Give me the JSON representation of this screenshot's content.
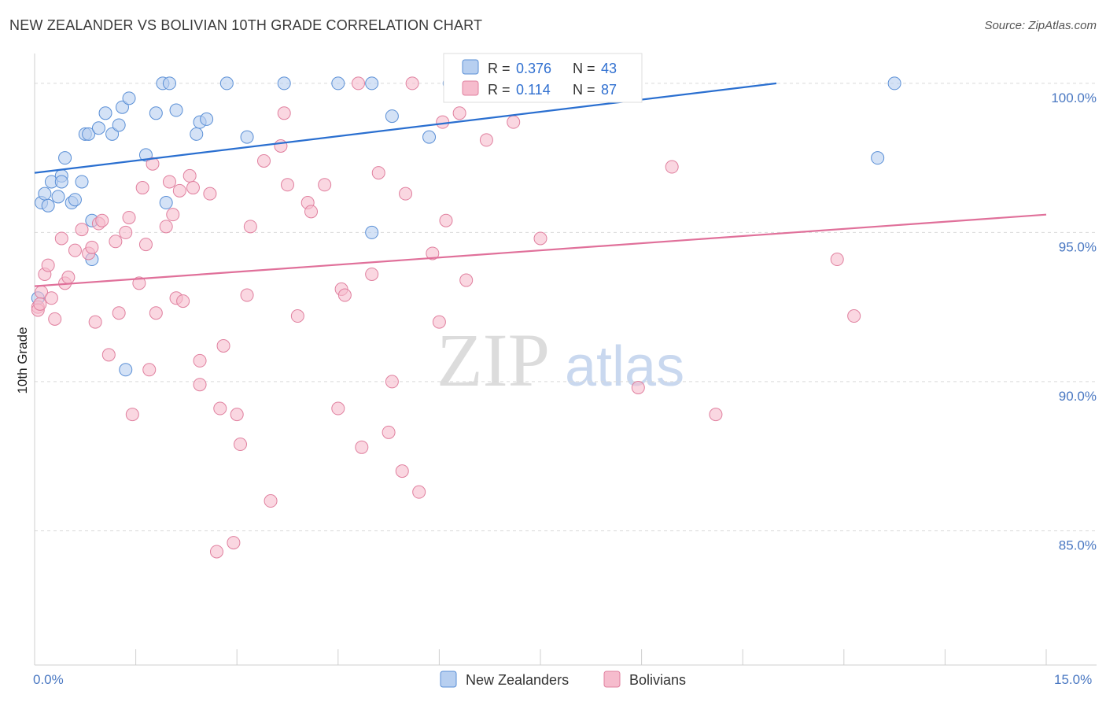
{
  "title": "NEW ZEALANDER VS BOLIVIAN 10TH GRADE CORRELATION CHART",
  "source": "Source: ZipAtlas.com",
  "watermark": {
    "zip": "ZIP",
    "atlas": "atlas"
  },
  "chart_data": {
    "type": "scatter",
    "ylabel": "10th Grade",
    "xlim": [
      0,
      15
    ],
    "ylim": [
      80.5,
      101.0
    ],
    "x_tick_labels": {
      "left": "0.0%",
      "right": "15.0%"
    },
    "y_ticks": [
      {
        "value": 85,
        "label": "85.0%"
      },
      {
        "value": 90,
        "label": "90.0%"
      },
      {
        "value": 95,
        "label": "95.0%"
      },
      {
        "value": 100,
        "label": "100.0%"
      }
    ],
    "legend": {
      "nz": {
        "r_label": "R =",
        "r_value": "0.376",
        "n_label": "N =",
        "n_value": "43"
      },
      "bo": {
        "r_label": "R =",
        "r_value": "0.114",
        "n_label": "N =",
        "n_value": "87"
      }
    },
    "series": [
      {
        "name": "New Zealanders",
        "key": "nz",
        "color": "#5a8fd6",
        "fill": "#b7cff0",
        "trend": {
          "x0": 0.0,
          "y0": 97.0,
          "x1": 11.0,
          "y1": 100.0,
          "color": "#2a6fd0"
        },
        "points": [
          [
            0.1,
            96.0
          ],
          [
            0.15,
            96.3
          ],
          [
            0.2,
            95.9
          ],
          [
            0.25,
            96.7
          ],
          [
            0.35,
            96.2
          ],
          [
            0.4,
            96.9
          ],
          [
            0.45,
            97.5
          ],
          [
            0.55,
            96.0
          ],
          [
            0.6,
            96.1
          ],
          [
            0.75,
            98.3
          ],
          [
            0.8,
            98.3
          ],
          [
            0.95,
            98.5
          ],
          [
            1.05,
            99.0
          ],
          [
            1.15,
            98.3
          ],
          [
            1.25,
            98.6
          ],
          [
            1.3,
            99.2
          ],
          [
            1.4,
            99.5
          ],
          [
            1.65,
            97.6
          ],
          [
            1.8,
            99.0
          ],
          [
            1.9,
            100.0
          ],
          [
            2.0,
            100.0
          ],
          [
            2.1,
            99.1
          ],
          [
            2.4,
            98.3
          ],
          [
            2.45,
            98.7
          ],
          [
            2.55,
            98.8
          ],
          [
            2.85,
            100.0
          ],
          [
            3.15,
            98.2
          ],
          [
            3.7,
            100.0
          ],
          [
            4.5,
            100.0
          ],
          [
            5.0,
            100.0
          ],
          [
            5.3,
            98.9
          ],
          [
            5.85,
            98.2
          ],
          [
            6.15,
            100.0
          ],
          [
            12.5,
            97.5
          ],
          [
            12.75,
            100.0
          ],
          [
            0.05,
            92.8
          ],
          [
            0.85,
            95.4
          ],
          [
            0.85,
            94.1
          ],
          [
            1.35,
            90.4
          ],
          [
            1.95,
            96.0
          ],
          [
            5.0,
            95.0
          ],
          [
            0.7,
            96.7
          ],
          [
            0.4,
            96.7
          ]
        ]
      },
      {
        "name": "Bolivians",
        "key": "bo",
        "color": "#e0809f",
        "fill": "#f6bccd",
        "trend": {
          "x0": 0.0,
          "y0": 93.2,
          "x1": 15.0,
          "y1": 95.6,
          "color": "#e0709a"
        },
        "points": [
          [
            0.05,
            92.5
          ],
          [
            0.1,
            93.0
          ],
          [
            0.15,
            93.6
          ],
          [
            0.2,
            93.9
          ],
          [
            0.25,
            92.8
          ],
          [
            0.3,
            92.1
          ],
          [
            0.4,
            94.8
          ],
          [
            0.45,
            93.3
          ],
          [
            0.5,
            93.5
          ],
          [
            0.6,
            94.4
          ],
          [
            0.7,
            95.1
          ],
          [
            0.8,
            94.3
          ],
          [
            0.85,
            94.5
          ],
          [
            0.9,
            92.0
          ],
          [
            0.95,
            95.3
          ],
          [
            1.0,
            95.4
          ],
          [
            1.1,
            90.9
          ],
          [
            1.2,
            94.7
          ],
          [
            1.25,
            92.3
          ],
          [
            1.35,
            95.0
          ],
          [
            1.4,
            95.5
          ],
          [
            1.45,
            88.9
          ],
          [
            1.55,
            93.3
          ],
          [
            1.6,
            96.5
          ],
          [
            1.65,
            94.6
          ],
          [
            1.7,
            90.4
          ],
          [
            1.75,
            97.3
          ],
          [
            1.8,
            92.3
          ],
          [
            1.95,
            95.2
          ],
          [
            2.0,
            96.7
          ],
          [
            2.05,
            95.6
          ],
          [
            2.1,
            92.8
          ],
          [
            2.15,
            96.4
          ],
          [
            2.2,
            92.7
          ],
          [
            2.3,
            96.9
          ],
          [
            2.35,
            96.5
          ],
          [
            2.45,
            89.9
          ],
          [
            2.45,
            90.7
          ],
          [
            2.6,
            96.3
          ],
          [
            2.7,
            84.3
          ],
          [
            2.75,
            89.1
          ],
          [
            2.8,
            91.2
          ],
          [
            2.95,
            84.6
          ],
          [
            3.0,
            88.9
          ],
          [
            3.05,
            87.9
          ],
          [
            3.15,
            92.9
          ],
          [
            3.2,
            95.2
          ],
          [
            3.4,
            97.4
          ],
          [
            3.5,
            86.0
          ],
          [
            3.65,
            97.9
          ],
          [
            3.7,
            99.0
          ],
          [
            3.75,
            96.6
          ],
          [
            3.9,
            92.2
          ],
          [
            4.05,
            96.0
          ],
          [
            4.1,
            95.7
          ],
          [
            4.3,
            96.6
          ],
          [
            4.5,
            89.1
          ],
          [
            4.55,
            93.1
          ],
          [
            4.6,
            92.9
          ],
          [
            4.8,
            100.0
          ],
          [
            4.85,
            87.8
          ],
          [
            5.0,
            93.6
          ],
          [
            5.1,
            97.0
          ],
          [
            5.25,
            88.3
          ],
          [
            5.3,
            90.0
          ],
          [
            5.45,
            87.0
          ],
          [
            5.5,
            96.3
          ],
          [
            5.6,
            100.0
          ],
          [
            5.7,
            86.3
          ],
          [
            5.9,
            94.3
          ],
          [
            6.0,
            92.0
          ],
          [
            6.05,
            98.7
          ],
          [
            6.1,
            95.4
          ],
          [
            6.3,
            99.0
          ],
          [
            6.4,
            93.4
          ],
          [
            6.7,
            98.1
          ],
          [
            7.0,
            100.0
          ],
          [
            7.1,
            98.7
          ],
          [
            7.5,
            94.8
          ],
          [
            7.6,
            100.0
          ],
          [
            8.95,
            89.8
          ],
          [
            9.45,
            97.2
          ],
          [
            10.1,
            88.9
          ],
          [
            11.9,
            94.1
          ],
          [
            12.15,
            92.2
          ],
          [
            0.05,
            92.4
          ],
          [
            0.08,
            92.6
          ]
        ]
      }
    ],
    "bottom_legend": [
      "New Zealanders",
      "Bolivians"
    ]
  }
}
